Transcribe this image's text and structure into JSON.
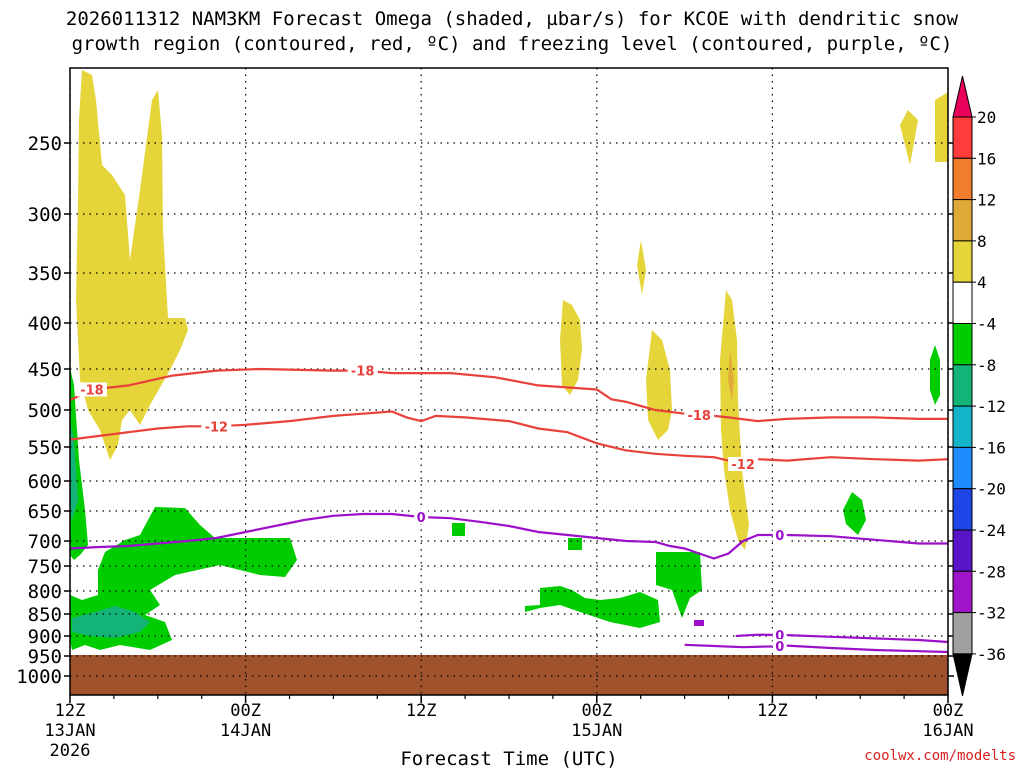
{
  "title_line1": "2026011312 NAM3KM Forecast Omega (shaded, µbar/s) for KCOE with dendritic snow",
  "title_line2": "growth region (contoured, red, ºC) and freezing level (contoured, purple, ºC)",
  "watermark": "coolwx.com/modelts",
  "chart_data": {
    "type": "time-height cross section",
    "title": "2026011312 NAM3KM Forecast Omega (shaded, µbar/s) for KCOE with dendritic snow growth region (contoured, red, ºC) and freezing level (contoured, purple, ºC)",
    "xlabel": "Forecast Time (UTC)",
    "ylabel": "",
    "xlim_hours": [
      0,
      60
    ],
    "ylim_hpa": [
      1050,
      200
    ],
    "x_ticks": [
      {
        "hour": 0,
        "label": "12Z",
        "sub": "13JAN",
        "sub2": "2026"
      },
      {
        "hour": 12,
        "label": "00Z",
        "sub": "14JAN",
        "sub2": ""
      },
      {
        "hour": 24,
        "label": "12Z",
        "sub": "",
        "sub2": ""
      },
      {
        "hour": 36,
        "label": "00Z",
        "sub": "15JAN",
        "sub2": ""
      },
      {
        "hour": 48,
        "label": "12Z",
        "sub": "",
        "sub2": ""
      },
      {
        "hour": 60,
        "label": "00Z",
        "sub": "16JAN",
        "sub2": ""
      }
    ],
    "y_ticks": [
      250,
      300,
      350,
      400,
      450,
      500,
      550,
      600,
      650,
      700,
      750,
      800,
      850,
      900,
      950,
      1000
    ],
    "grid": true,
    "colorbar": {
      "labels": [
        "20",
        "16",
        "12",
        "8",
        "4",
        "-4",
        "-8",
        "-12",
        "-16",
        "-20",
        "-24",
        "-28",
        "-32",
        "-36"
      ],
      "colors": [
        "#e8005a",
        "#ff3c3c",
        "#f07c2c",
        "#e0aa38",
        "#e6d53a",
        "#ffffff",
        "#00cd00",
        "#14b478",
        "#14b4c8",
        "#1e8cff",
        "#1e46e6",
        "#5a14c8",
        "#a014c8",
        "#a0a0a0",
        "#000000"
      ]
    },
    "contours": [
      {
        "name": "dgz_-18",
        "label": "-18",
        "color": "#e8413b",
        "points": [
          [
            0,
            488
          ],
          [
            1.5,
            475
          ],
          [
            4,
            470
          ],
          [
            7,
            458
          ],
          [
            10,
            452
          ],
          [
            13,
            450
          ],
          [
            18,
            452
          ],
          [
            20,
            452
          ],
          [
            22,
            455
          ],
          [
            24,
            455
          ],
          [
            26,
            455
          ],
          [
            29,
            460
          ],
          [
            32,
            470
          ],
          [
            36,
            475
          ],
          [
            37,
            487
          ],
          [
            38,
            490
          ],
          [
            40,
            500
          ],
          [
            42,
            505
          ],
          [
            44,
            508
          ],
          [
            45,
            510
          ],
          [
            47,
            515
          ],
          [
            49,
            512
          ],
          [
            52,
            510
          ],
          [
            55,
            510
          ],
          [
            58,
            512
          ],
          [
            60,
            512
          ]
        ],
        "label_hours": [
          1.5,
          20,
          43
        ]
      },
      {
        "name": "dgz_-12",
        "label": "-12",
        "color": "#e8413b",
        "points": [
          [
            0,
            540
          ],
          [
            2,
            535
          ],
          [
            4,
            530
          ],
          [
            6,
            525
          ],
          [
            8,
            522
          ],
          [
            10,
            522
          ],
          [
            12,
            520
          ],
          [
            15,
            515
          ],
          [
            18,
            508
          ],
          [
            20,
            505
          ],
          [
            22,
            502
          ],
          [
            23,
            510
          ],
          [
            24,
            515
          ],
          [
            25,
            508
          ],
          [
            27,
            510
          ],
          [
            30,
            515
          ],
          [
            32,
            525
          ],
          [
            34,
            530
          ],
          [
            36,
            545
          ],
          [
            38,
            555
          ],
          [
            40,
            560
          ],
          [
            42,
            563
          ],
          [
            44,
            565
          ],
          [
            45,
            570
          ],
          [
            46,
            575
          ],
          [
            47,
            568
          ],
          [
            49,
            570
          ],
          [
            52,
            565
          ],
          [
            55,
            568
          ],
          [
            58,
            570
          ],
          [
            60,
            568
          ]
        ],
        "label_hours": [
          10,
          46
        ]
      },
      {
        "name": "freezing_level_0",
        "label": "0",
        "color": "#9b10c8",
        "points": [
          [
            0,
            715
          ],
          [
            2,
            712
          ],
          [
            4,
            710
          ],
          [
            6,
            705
          ],
          [
            8,
            700
          ],
          [
            10,
            695
          ],
          [
            12,
            685
          ],
          [
            14,
            675
          ],
          [
            16,
            665
          ],
          [
            18,
            658
          ],
          [
            20,
            655
          ],
          [
            22,
            655
          ],
          [
            24,
            660
          ],
          [
            26,
            662
          ],
          [
            28,
            668
          ],
          [
            30,
            675
          ],
          [
            32,
            685
          ],
          [
            34,
            690
          ],
          [
            36,
            695
          ],
          [
            38,
            700
          ],
          [
            40,
            702
          ],
          [
            41,
            710
          ],
          [
            42,
            715
          ],
          [
            43,
            725
          ],
          [
            44,
            735
          ],
          [
            45,
            725
          ],
          [
            46,
            700
          ],
          [
            47,
            690
          ],
          [
            49,
            690
          ],
          [
            52,
            692
          ],
          [
            55,
            698
          ],
          [
            58,
            705
          ],
          [
            60,
            705
          ]
        ],
        "label_hours": [
          24,
          48.5
        ]
      },
      {
        "name": "freezing_level_0_lower_a",
        "label": "0",
        "color": "#9b10c8",
        "points": [
          [
            45.5,
            900
          ],
          [
            47,
            897
          ],
          [
            49,
            898
          ],
          [
            52,
            902
          ],
          [
            55,
            906
          ],
          [
            58,
            910
          ],
          [
            60,
            915
          ]
        ],
        "label_hours": [
          48.5
        ]
      },
      {
        "name": "freezing_level_0_lower_b",
        "label": "0",
        "color": "#9b10c8",
        "points": [
          [
            42,
            922
          ],
          [
            44,
            925
          ],
          [
            46,
            928
          ],
          [
            48,
            926
          ],
          [
            49,
            924
          ],
          [
            52,
            930
          ],
          [
            55,
            935
          ],
          [
            58,
            938
          ],
          [
            60,
            940
          ]
        ],
        "label_hours": [
          48.5
        ]
      }
    ]
  }
}
